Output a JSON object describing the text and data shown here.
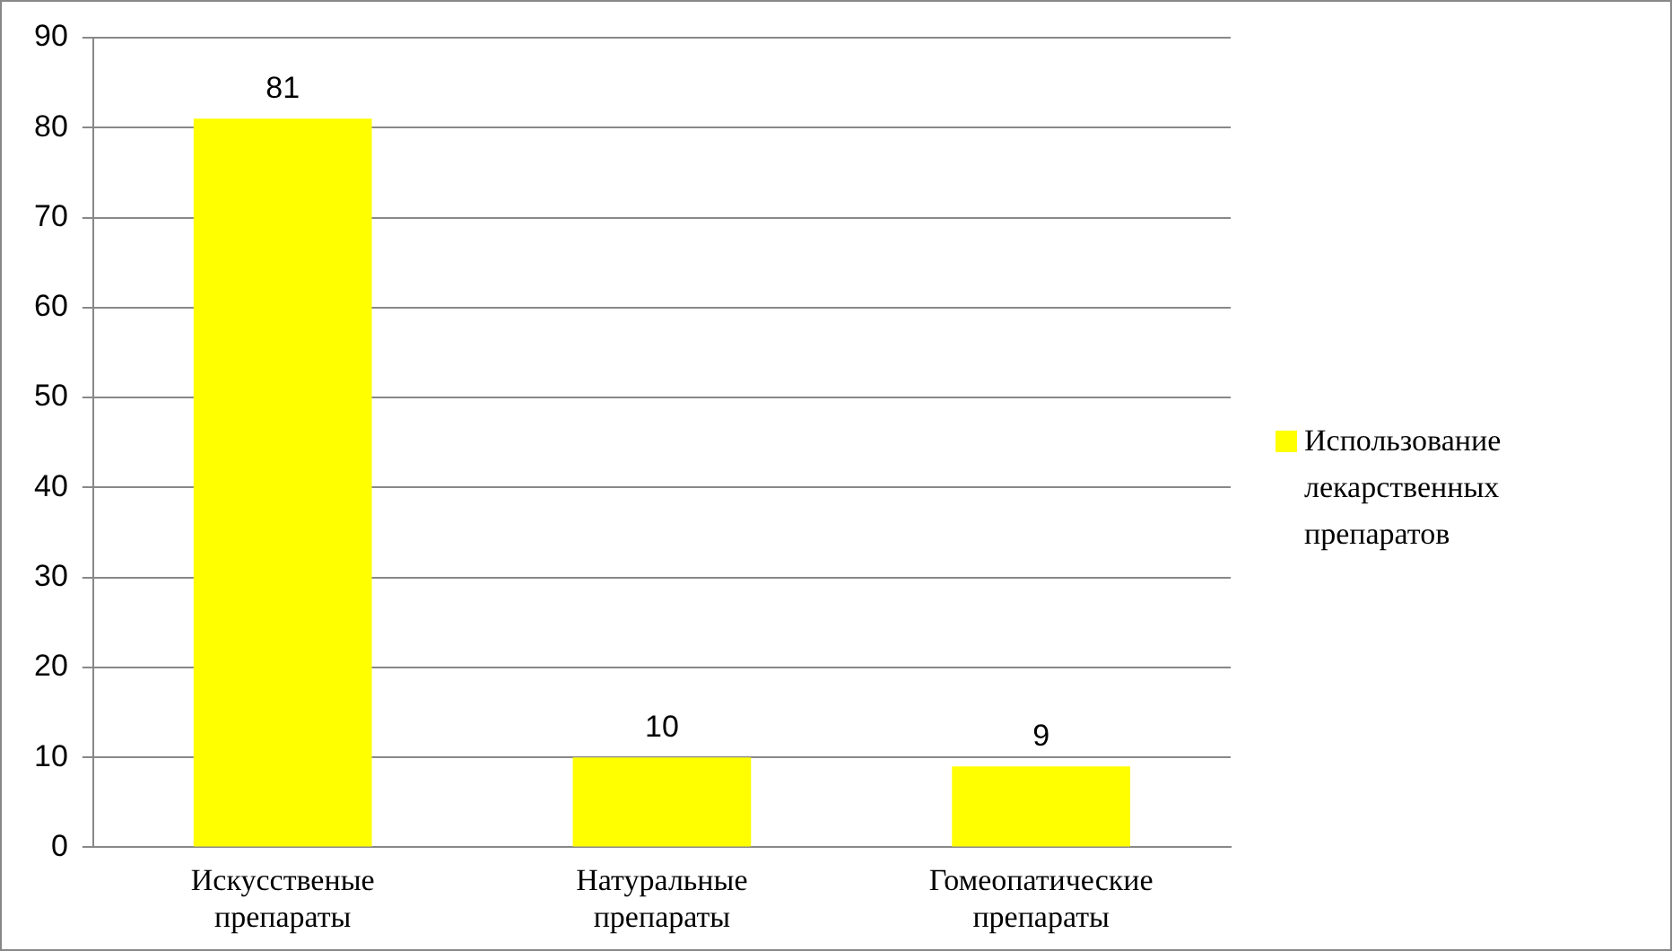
{
  "chart_data": {
    "type": "bar",
    "categories": [
      "Искусственые препараты",
      "Натуральные препараты",
      "Гомеопатические препараты"
    ],
    "series": [
      {
        "name": "Использование лекарственных препаратов",
        "color": "#ffff00",
        "values": [
          81,
          10,
          9
        ]
      }
    ],
    "ylim": [
      0,
      90
    ],
    "yticks": [
      0,
      10,
      20,
      30,
      40,
      50,
      60,
      70,
      80,
      90
    ],
    "grid": "y",
    "legend": "right",
    "data_labels": true
  }
}
